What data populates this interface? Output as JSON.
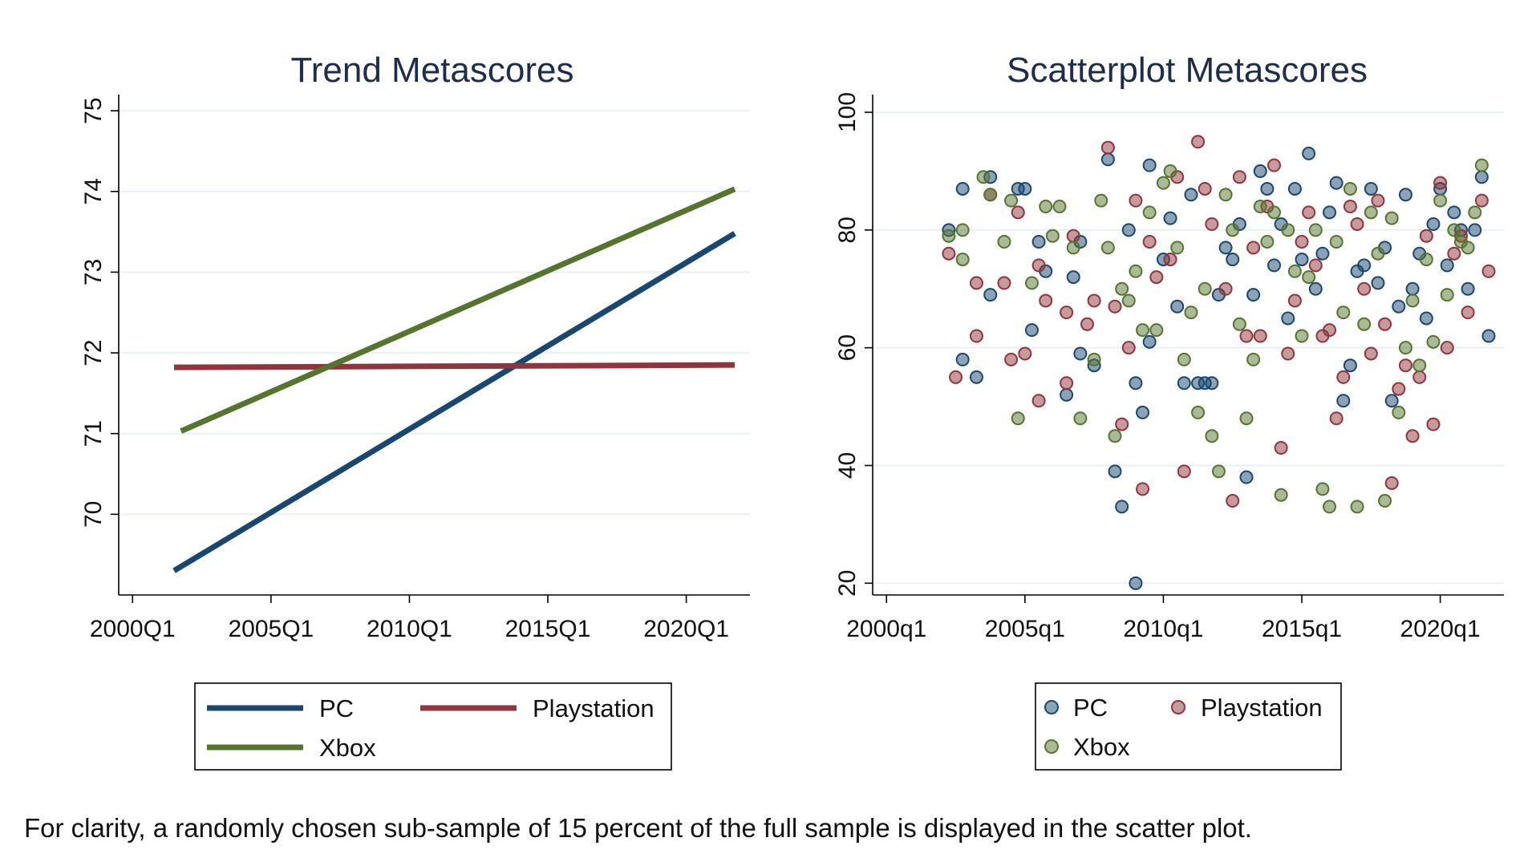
{
  "chart_data": [
    {
      "type": "line",
      "title": "Trend Metascores",
      "xlabel": "",
      "ylabel": "",
      "x_ticks": [
        "2000Q1",
        "2005Q1",
        "2010Q1",
        "2015Q1",
        "2020Q1"
      ],
      "x_tick_years": [
        2000,
        2005,
        2010,
        2015,
        2020
      ],
      "xlim": [
        1999.5,
        2022.3
      ],
      "y_ticks": [
        70,
        71,
        72,
        73,
        74,
        75
      ],
      "ylim": [
        69.0,
        75.2
      ],
      "grid": true,
      "legend": "bottom",
      "series": [
        {
          "name": "PC",
          "color": "#1a476f",
          "x": [
            2001.5,
            2021.75
          ],
          "y": [
            69.3,
            73.48
          ]
        },
        {
          "name": "Playstation",
          "color": "#90353b",
          "x": [
            2001.5,
            2021.75
          ],
          "y": [
            71.82,
            71.85
          ]
        },
        {
          "name": "Xbox",
          "color": "#55752f",
          "x": [
            2001.75,
            2021.75
          ],
          "y": [
            71.03,
            74.03
          ]
        }
      ]
    },
    {
      "type": "scatter",
      "title": "Scatterplot Metascores",
      "xlabel": "",
      "ylabel": "",
      "x_ticks": [
        "2000q1",
        "2005q1",
        "2010q1",
        "2015q1",
        "2020q1"
      ],
      "x_tick_years": [
        2000,
        2005,
        2010,
        2015,
        2020
      ],
      "xlim": [
        1999.5,
        2022.3
      ],
      "y_ticks": [
        20,
        40,
        60,
        80,
        100
      ],
      "ylim": [
        18,
        103
      ],
      "grid": true,
      "legend": "bottom",
      "series": [
        {
          "name": "PC",
          "color": "#1a476f",
          "points": [
            [
              2002.25,
              80
            ],
            [
              2002.75,
              58
            ],
            [
              2002.75,
              87
            ],
            [
              2003.25,
              55
            ],
            [
              2003.75,
              69
            ],
            [
              2003.75,
              89
            ],
            [
              2004.75,
              87
            ],
            [
              2005.0,
              87
            ],
            [
              2005.25,
              63
            ],
            [
              2005.5,
              78
            ],
            [
              2005.75,
              73
            ],
            [
              2006.5,
              52
            ],
            [
              2006.75,
              72
            ],
            [
              2007.0,
              78
            ],
            [
              2007.0,
              59
            ],
            [
              2007.5,
              57
            ],
            [
              2008.0,
              92
            ],
            [
              2008.25,
              39
            ],
            [
              2008.5,
              33
            ],
            [
              2008.75,
              80
            ],
            [
              2009.0,
              54
            ],
            [
              2009.0,
              20
            ],
            [
              2009.25,
              49
            ],
            [
              2009.5,
              91
            ],
            [
              2009.5,
              61
            ],
            [
              2010.0,
              75
            ],
            [
              2010.25,
              82
            ],
            [
              2010.5,
              67
            ],
            [
              2010.75,
              54
            ],
            [
              2011.0,
              86
            ],
            [
              2011.25,
              54
            ],
            [
              2011.5,
              54
            ],
            [
              2011.75,
              54
            ],
            [
              2012.0,
              69
            ],
            [
              2012.25,
              77
            ],
            [
              2012.5,
              75
            ],
            [
              2012.75,
              81
            ],
            [
              2013.0,
              38
            ],
            [
              2013.25,
              69
            ],
            [
              2013.5,
              90
            ],
            [
              2013.75,
              87
            ],
            [
              2014.0,
              74
            ],
            [
              2014.25,
              81
            ],
            [
              2014.5,
              65
            ],
            [
              2014.75,
              87
            ],
            [
              2015.0,
              75
            ],
            [
              2015.25,
              93
            ],
            [
              2015.5,
              70
            ],
            [
              2015.75,
              76
            ],
            [
              2016.0,
              83
            ],
            [
              2016.25,
              88
            ],
            [
              2016.5,
              51
            ],
            [
              2016.75,
              57
            ],
            [
              2017.0,
              73
            ],
            [
              2017.25,
              74
            ],
            [
              2017.5,
              87
            ],
            [
              2017.75,
              71
            ],
            [
              2018.0,
              77
            ],
            [
              2018.25,
              51
            ],
            [
              2018.5,
              67
            ],
            [
              2018.75,
              86
            ],
            [
              2019.0,
              70
            ],
            [
              2019.25,
              76
            ],
            [
              2019.5,
              65
            ],
            [
              2019.75,
              81
            ],
            [
              2020.0,
              87
            ],
            [
              2020.25,
              74
            ],
            [
              2020.5,
              83
            ],
            [
              2020.75,
              80
            ],
            [
              2021.0,
              70
            ],
            [
              2021.25,
              80
            ],
            [
              2021.5,
              89
            ],
            [
              2021.75,
              62
            ]
          ]
        },
        {
          "name": "Playstation",
          "color": "#90353b",
          "points": [
            [
              2002.25,
              76
            ],
            [
              2002.5,
              55
            ],
            [
              2003.25,
              62
            ],
            [
              2003.25,
              71
            ],
            [
              2003.75,
              86
            ],
            [
              2004.25,
              71
            ],
            [
              2004.5,
              58
            ],
            [
              2004.75,
              83
            ],
            [
              2005.0,
              59
            ],
            [
              2005.5,
              51
            ],
            [
              2005.5,
              74
            ],
            [
              2005.75,
              68
            ],
            [
              2006.5,
              66
            ],
            [
              2006.5,
              54
            ],
            [
              2006.75,
              79
            ],
            [
              2007.25,
              64
            ],
            [
              2007.5,
              68
            ],
            [
              2008.0,
              94
            ],
            [
              2008.25,
              67
            ],
            [
              2008.5,
              47
            ],
            [
              2008.75,
              60
            ],
            [
              2009.0,
              85
            ],
            [
              2009.25,
              36
            ],
            [
              2009.5,
              78
            ],
            [
              2009.75,
              72
            ],
            [
              2010.25,
              75
            ],
            [
              2010.5,
              89
            ],
            [
              2010.75,
              39
            ],
            [
              2011.25,
              95
            ],
            [
              2011.5,
              87
            ],
            [
              2011.75,
              81
            ],
            [
              2012.25,
              70
            ],
            [
              2012.5,
              34
            ],
            [
              2012.75,
              89
            ],
            [
              2013.0,
              62
            ],
            [
              2013.25,
              77
            ],
            [
              2013.5,
              62
            ],
            [
              2013.75,
              84
            ],
            [
              2014.0,
              91
            ],
            [
              2014.25,
              43
            ],
            [
              2014.5,
              59
            ],
            [
              2014.75,
              68
            ],
            [
              2015.0,
              78
            ],
            [
              2015.25,
              83
            ],
            [
              2015.5,
              74
            ],
            [
              2015.75,
              62
            ],
            [
              2016.0,
              63
            ],
            [
              2016.25,
              48
            ],
            [
              2016.5,
              55
            ],
            [
              2016.75,
              84
            ],
            [
              2017.0,
              81
            ],
            [
              2017.25,
              70
            ],
            [
              2017.5,
              59
            ],
            [
              2017.75,
              85
            ],
            [
              2018.0,
              64
            ],
            [
              2018.25,
              37
            ],
            [
              2018.5,
              53
            ],
            [
              2018.75,
              57
            ],
            [
              2019.0,
              45
            ],
            [
              2019.25,
              55
            ],
            [
              2019.5,
              79
            ],
            [
              2019.75,
              47
            ],
            [
              2020.0,
              88
            ],
            [
              2020.25,
              60
            ],
            [
              2020.5,
              76
            ],
            [
              2020.75,
              79
            ],
            [
              2021.0,
              66
            ],
            [
              2021.5,
              85
            ],
            [
              2021.75,
              73
            ]
          ]
        },
        {
          "name": "Xbox",
          "color": "#55752f",
          "points": [
            [
              2002.25,
              79
            ],
            [
              2002.75,
              75
            ],
            [
              2002.75,
              80
            ],
            [
              2003.5,
              89
            ],
            [
              2003.75,
              86
            ],
            [
              2004.25,
              78
            ],
            [
              2004.5,
              85
            ],
            [
              2004.75,
              48
            ],
            [
              2005.25,
              71
            ],
            [
              2005.75,
              84
            ],
            [
              2006.0,
              79
            ],
            [
              2006.25,
              84
            ],
            [
              2006.75,
              77
            ],
            [
              2007.0,
              48
            ],
            [
              2007.5,
              58
            ],
            [
              2007.75,
              85
            ],
            [
              2008.0,
              77
            ],
            [
              2008.25,
              45
            ],
            [
              2008.5,
              70
            ],
            [
              2008.75,
              68
            ],
            [
              2009.0,
              73
            ],
            [
              2009.25,
              63
            ],
            [
              2009.5,
              83
            ],
            [
              2009.75,
              63
            ],
            [
              2010.0,
              88
            ],
            [
              2010.25,
              90
            ],
            [
              2010.5,
              77
            ],
            [
              2010.75,
              58
            ],
            [
              2011.0,
              66
            ],
            [
              2011.25,
              49
            ],
            [
              2011.5,
              70
            ],
            [
              2011.75,
              45
            ],
            [
              2012.0,
              39
            ],
            [
              2012.25,
              86
            ],
            [
              2012.5,
              80
            ],
            [
              2012.75,
              64
            ],
            [
              2013.0,
              48
            ],
            [
              2013.25,
              58
            ],
            [
              2013.5,
              84
            ],
            [
              2013.75,
              78
            ],
            [
              2014.0,
              83
            ],
            [
              2014.25,
              35
            ],
            [
              2014.5,
              80
            ],
            [
              2014.75,
              73
            ],
            [
              2015.0,
              62
            ],
            [
              2015.25,
              72
            ],
            [
              2015.5,
              80
            ],
            [
              2015.75,
              36
            ],
            [
              2016.0,
              33
            ],
            [
              2016.25,
              78
            ],
            [
              2016.5,
              66
            ],
            [
              2016.75,
              87
            ],
            [
              2017.0,
              33
            ],
            [
              2017.25,
              64
            ],
            [
              2017.5,
              83
            ],
            [
              2017.75,
              76
            ],
            [
              2018.0,
              34
            ],
            [
              2018.25,
              82
            ],
            [
              2018.5,
              49
            ],
            [
              2018.75,
              60
            ],
            [
              2019.0,
              68
            ],
            [
              2019.25,
              57
            ],
            [
              2019.5,
              75
            ],
            [
              2019.75,
              61
            ],
            [
              2020.0,
              85
            ],
            [
              2020.25,
              69
            ],
            [
              2020.5,
              80
            ],
            [
              2020.75,
              78
            ],
            [
              2021.0,
              77
            ],
            [
              2021.25,
              83
            ],
            [
              2021.5,
              91
            ]
          ]
        }
      ]
    }
  ],
  "legends": [
    {
      "items": [
        {
          "label": "PC"
        },
        {
          "label": "Playstation"
        },
        {
          "label": "Xbox"
        }
      ]
    },
    {
      "items": [
        {
          "label": "PC"
        },
        {
          "label": "Playstation"
        },
        {
          "label": "Xbox"
        }
      ]
    }
  ],
  "note": "For clarity, a randomly chosen sub-sample of 15 percent of the full sample is displayed in the scatter plot."
}
